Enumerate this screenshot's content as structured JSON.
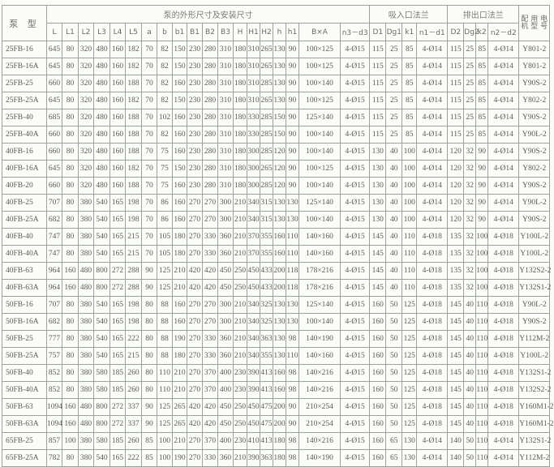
{
  "header": {
    "pump_model": "泵 型",
    "dimensions_group": "泵的外形尺寸及安装尺寸",
    "inlet_group": "吸入口法兰",
    "outlet_group": "排出口法兰",
    "motor": "配 用 电 机 型 号",
    "columns": [
      "L",
      "L1",
      "L2",
      "L3",
      "L4",
      "L5",
      "a",
      "b",
      "b1",
      "B1",
      "B2",
      "B3",
      "H",
      "H1",
      "H2",
      "h",
      "h1",
      "B×A",
      "n3－d3",
      "D1",
      "Dg1",
      "k1",
      "n1－d1",
      "D2",
      "Dg2",
      "k2",
      "n2－d2"
    ]
  },
  "rows": [
    [
      "25FB-16",
      "645",
      "80",
      "320",
      "480",
      "160",
      "182",
      "70",
      "82",
      "150",
      "230",
      "280",
      "310",
      "180",
      "310",
      "265",
      "130",
      "90",
      "100×125",
      "4-Ø15",
      "115",
      "25",
      "85",
      "4-Ø14",
      "115",
      "25",
      "85",
      "4-Ø14",
      "Y801-2"
    ],
    [
      "25FB-16A",
      "645",
      "80",
      "320",
      "480",
      "160",
      "182",
      "70",
      "82",
      "150",
      "230",
      "280",
      "310",
      "180",
      "310",
      "265",
      "130",
      "90",
      "100×125",
      "4-Ø15",
      "115",
      "25",
      "85",
      "4-Ø14",
      "115",
      "25",
      "85",
      "4-Ø14",
      "Y801-2"
    ],
    [
      "25FB-25",
      "660",
      "80",
      "320",
      "480",
      "160",
      "188",
      "70",
      "82",
      "160",
      "230",
      "280",
      "310",
      "180",
      "310",
      "285",
      "130",
      "90",
      "100×140",
      "4-Ø15",
      "115",
      "25",
      "85",
      "4-Ø14",
      "115",
      "25",
      "85",
      "4-Ø14",
      "Y90S-2"
    ],
    [
      "25FB-25A",
      "645",
      "80",
      "320",
      "480",
      "160",
      "182",
      "70",
      "82",
      "150",
      "230",
      "280",
      "310",
      "180",
      "310",
      "265",
      "130",
      "90",
      "100×125",
      "4-Ø15",
      "115",
      "25",
      "85",
      "4-Ø14",
      "115",
      "25",
      "85",
      "4-Ø14",
      "Y802-2"
    ],
    [
      "25FB-40",
      "685",
      "80",
      "320",
      "480",
      "160",
      "188",
      "70",
      "102",
      "160",
      "230",
      "280",
      "310",
      "180",
      "330",
      "285",
      "150",
      "90",
      "125×140",
      "4-Ø15",
      "115",
      "25",
      "85",
      "4-Ø14",
      "115",
      "25",
      "85",
      "4-Ø14",
      "Y90S-2"
    ],
    [
      "25FB-40A",
      "660",
      "80",
      "320",
      "480",
      "160",
      "188",
      "70",
      "82",
      "160",
      "230",
      "280",
      "310",
      "180",
      "330",
      "285",
      "150",
      "90",
      "100×140",
      "4-Ø15",
      "115",
      "25",
      "85",
      "4-Ø14",
      "115",
      "25",
      "85",
      "4-Ø14",
      "Y90L-2"
    ],
    [
      "40FB-16",
      "660",
      "80",
      "320",
      "480",
      "160",
      "188",
      "70",
      "75",
      "160",
      "230",
      "280",
      "310",
      "180",
      "300",
      "285",
      "120",
      "90",
      "100×140",
      "4-Ø15",
      "130",
      "40",
      "100",
      "4-Ø14",
      "120",
      "32",
      "90",
      "4-Ø14",
      "Y90S-2"
    ],
    [
      "40FB-16A",
      "645",
      "80",
      "320",
      "480",
      "160",
      "182",
      "70",
      "75",
      "150",
      "230",
      "280",
      "310",
      "180",
      "300",
      "265",
      "120",
      "90",
      "100×125",
      "4-Ø15",
      "130",
      "40",
      "100",
      "4-Ø14",
      "120",
      "32",
      "90",
      "4-Ø14",
      "Y802-2"
    ],
    [
      "40FB-20",
      "660",
      "80",
      "320",
      "480",
      "160",
      "188",
      "70",
      "75",
      "160",
      "230",
      "280",
      "310",
      "180",
      "300",
      "285",
      "120",
      "90",
      "100×140",
      "4-Ø15",
      "130",
      "40",
      "100",
      "4-Ø14",
      "120",
      "32",
      "90",
      "4-Ø14",
      "Y90S-2"
    ],
    [
      "40FB-25",
      "707",
      "80",
      "380",
      "540",
      "165",
      "198",
      "70",
      "86",
      "160",
      "270",
      "270",
      "300",
      "210",
      "340",
      "315",
      "130",
      "130",
      "125×140",
      "4-Ø15",
      "130",
      "40",
      "100",
      "4-Ø14",
      "120",
      "32",
      "90",
      "4-Ø14",
      "Y90L-2"
    ],
    [
      "40FB-25A",
      "682",
      "80",
      "380",
      "540",
      "165",
      "198",
      "70",
      "86",
      "160",
      "270",
      "270",
      "300",
      "210",
      "340",
      "315",
      "130",
      "130",
      "100×140",
      "4-Ø15",
      "130",
      "40",
      "100",
      "4-Ø14",
      "120",
      "32",
      "90",
      "4-Ø14",
      "Y90S-2"
    ],
    [
      "40FB-40",
      "747",
      "80",
      "380",
      "540",
      "165",
      "215",
      "70",
      "105",
      "180",
      "270",
      "330",
      "360",
      "210",
      "370",
      "355",
      "160",
      "110",
      "140×160",
      "4-Ø15",
      "145",
      "40",
      "110",
      "4-Ø18",
      "135",
      "32",
      "100",
      "4-Ø18",
      "Y100L-2"
    ],
    [
      "40FB-40A",
      "747",
      "80",
      "380",
      "540",
      "165",
      "215",
      "70",
      "105",
      "180",
      "270",
      "330",
      "360",
      "210",
      "370",
      "355",
      "160",
      "110",
      "140×160",
      "4-Ø15",
      "145",
      "40",
      "110",
      "4-Ø18",
      "135",
      "32",
      "100",
      "4-Ø18",
      "Y100L-2"
    ],
    [
      "40FB-63",
      "964",
      "160",
      "480",
      "800",
      "272",
      "288",
      "90",
      "125",
      "210",
      "420",
      "420",
      "450",
      "250",
      "450",
      "433",
      "200",
      "118",
      "178×216",
      "4-Ø15",
      "145",
      "40",
      "110",
      "4-Ø18",
      "135",
      "32",
      "100",
      "4-Ø18",
      "Y132S2-2"
    ],
    [
      "40FB-63A",
      "964",
      "160",
      "480",
      "800",
      "272",
      "288",
      "90",
      "125",
      "210",
      "420",
      "420",
      "450",
      "250",
      "450",
      "433",
      "200",
      "118",
      "178×216",
      "4-Ø15",
      "145",
      "40",
      "110",
      "4-Ø18",
      "135",
      "32",
      "100",
      "4-Ø18",
      "Y132S1-2"
    ],
    [
      "50FB-16",
      "707",
      "80",
      "380",
      "540",
      "165",
      "198",
      "80",
      "88",
      "160",
      "270",
      "270",
      "300",
      "210",
      "340",
      "325",
      "130",
      "130",
      "125×140",
      "4-Ø15",
      "160",
      "50",
      "125",
      "4-Ø18",
      "145",
      "40",
      "110",
      "4-Ø18",
      "Y90L-2"
    ],
    [
      "50FB-16A",
      "682",
      "80",
      "380",
      "540",
      "165",
      "198",
      "80",
      "88",
      "160",
      "270",
      "270",
      "300",
      "210",
      "340",
      "325",
      "130",
      "130",
      "100×140",
      "4-Ø15",
      "160",
      "50",
      "125",
      "4-Ø18",
      "145",
      "40",
      "110",
      "4-Ø18",
      "Y90S-2"
    ],
    [
      "50FB-25",
      "777",
      "80",
      "380",
      "540",
      "165",
      "222",
      "80",
      "88",
      "190",
      "270",
      "330",
      "360",
      "210",
      "340",
      "363",
      "130",
      "98",
      "140×190",
      "4-Ø15",
      "160",
      "50",
      "125",
      "4-Ø18",
      "145",
      "40",
      "110",
      "4-Ø18",
      "Y112M-2"
    ],
    [
      "50FB-25A",
      "757",
      "80",
      "380",
      "540",
      "165",
      "215",
      "80",
      "88",
      "180",
      "270",
      "330",
      "360",
      "210",
      "340",
      "355",
      "130",
      "110",
      "140×160",
      "4-Ø15",
      "160",
      "50",
      "125",
      "4-Ø18",
      "145",
      "40",
      "110",
      "4-Ø18",
      "Y100L-2"
    ],
    [
      "50FB-40",
      "852",
      "80",
      "380",
      "580",
      "185",
      "260",
      "80",
      "110",
      "210",
      "270",
      "370",
      "400",
      "230",
      "390",
      "413",
      "160",
      "98",
      "140×216",
      "4-Ø15",
      "160",
      "50",
      "125",
      "4-Ø18",
      "145",
      "40",
      "110",
      "4-Ø18",
      "Y132S1-2"
    ],
    [
      "50FB-40A",
      "852",
      "80",
      "380",
      "580",
      "185",
      "260",
      "80",
      "110",
      "210",
      "270",
      "370",
      "400",
      "230",
      "390",
      "413",
      "160",
      "98",
      "140×216",
      "4-Ø15",
      "160",
      "50",
      "125",
      "4-Ø18",
      "145",
      "40",
      "110",
      "4-Ø18",
      "Y132S2-2"
    ],
    [
      "50FB-63",
      "1094",
      "160",
      "480",
      "800",
      "272",
      "337",
      "90",
      "125",
      "265",
      "420",
      "420",
      "450",
      "250",
      "450",
      "475",
      "200",
      "90",
      "210×254",
      "4-Ø15",
      "160",
      "50",
      "125",
      "4-Ø18",
      "145",
      "40",
      "110",
      "4-Ø18",
      "Y160M1-2"
    ],
    [
      "50FB-63A",
      "1094",
      "160",
      "480",
      "800",
      "272",
      "337",
      "90",
      "125",
      "265",
      "420",
      "420",
      "450",
      "250",
      "450",
      "475",
      "200",
      "90",
      "210×254",
      "4-Ø15",
      "160",
      "50",
      "125",
      "4-Ø18",
      "145",
      "40",
      "110",
      "4-Ø18",
      "Y160M1-2"
    ],
    [
      "65FB-25",
      "857",
      "100",
      "380",
      "580",
      "185",
      "260",
      "85",
      "100",
      "210",
      "270",
      "370",
      "400",
      "230",
      "410",
      "413",
      "180",
      "98",
      "140×216",
      "4-Ø15",
      "160",
      "65",
      "130",
      "4-Ø14",
      "140",
      "50",
      "110",
      "4-Ø14",
      "Y132S1-2"
    ],
    [
      "65FB-25A",
      "782",
      "80",
      "380",
      "540",
      "165",
      "222",
      "85",
      "100",
      "190",
      "270",
      "330",
      "360",
      "210",
      "390",
      "363",
      "180",
      "98",
      "140×190",
      "4-Ø15",
      "160",
      "65",
      "130",
      "4-Ø14",
      "140",
      "50",
      "110",
      "4-Ø14",
      "Y112M-2"
    ]
  ]
}
